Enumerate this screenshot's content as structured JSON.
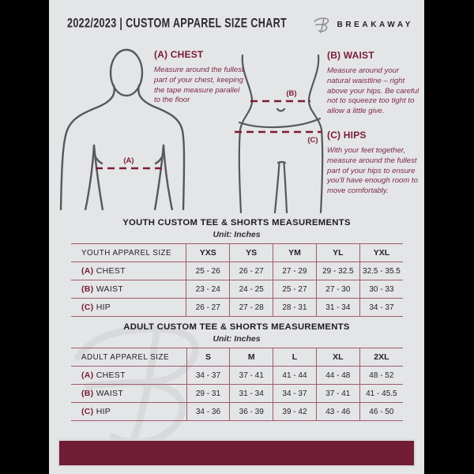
{
  "header": {
    "title": "2022/2023  |  CUSTOM APPAREL SIZE CHART",
    "brand": "BREAKAWAY"
  },
  "measure_guide": {
    "chest": {
      "heading": "(A) CHEST",
      "body": "Measure around the fullest part of your chest, keeping the tape measure parallel to the floor",
      "diagram_label": "(A)"
    },
    "waist": {
      "heading": "(B) WAIST",
      "body": "Measure around your natural waistline – right above your hips. Be careful not to squeeze too tight to allow a little give.",
      "diagram_label": "(B)"
    },
    "hips": {
      "heading": "(C) HIPS",
      "body": "With your feet together, measure around the fullest part of your hips to ensure you'll have enough room to move comfortably.",
      "diagram_label": "(C)"
    }
  },
  "youth_table": {
    "title": "YOUTH CUSTOM TEE & SHORTS MEASUREMENTS",
    "unit": "Unit: Inches",
    "header": [
      "YOUTH APPAREL SIZE",
      "YXS",
      "YS",
      "YM",
      "YL",
      "YXL"
    ],
    "rows": [
      {
        "label_prefix": "(A)",
        "label": "CHEST",
        "values": [
          "25 - 26",
          "26 - 27",
          "27 - 29",
          "29 - 32.5",
          "32.5 - 35.5"
        ]
      },
      {
        "label_prefix": "(B)",
        "label": "WAIST",
        "values": [
          "23 - 24",
          "24 - 25",
          "25 - 27",
          "27 - 30",
          "30 - 33"
        ]
      },
      {
        "label_prefix": "(C)",
        "label": "HIP",
        "values": [
          "26 - 27",
          "27 - 28",
          "28 - 31",
          "31 - 34",
          "34 - 37"
        ]
      }
    ]
  },
  "adult_table": {
    "title": "ADULT CUSTOM TEE & SHORTS MEASUREMENTS",
    "unit": "Unit: Inches",
    "header": [
      "ADULT APPAREL SIZE",
      "S",
      "M",
      "L",
      "XL",
      "2XL"
    ],
    "rows": [
      {
        "label_prefix": "(A)",
        "label": "CHEST",
        "values": [
          "34 - 37",
          "37 - 41",
          "41 - 44",
          "44 - 48",
          "48 - 52"
        ]
      },
      {
        "label_prefix": "(B)",
        "label": "WAIST",
        "values": [
          "29 - 31",
          "31 - 34",
          "34 - 37",
          "37 - 41",
          "41 - 45.5"
        ]
      },
      {
        "label_prefix": "(C)",
        "label": "HIP",
        "values": [
          "34 - 36",
          "36 - 39",
          "39 - 42",
          "43 - 46",
          "46 - 50"
        ]
      }
    ]
  },
  "colors": {
    "maroon_accent": "#7a1b38",
    "footer_bar": "#6f1c34",
    "page_background": "#e4e5e7",
    "outline_gray": "#56585b",
    "table_border": "#9e5a6e",
    "outer_background": "#000000"
  }
}
